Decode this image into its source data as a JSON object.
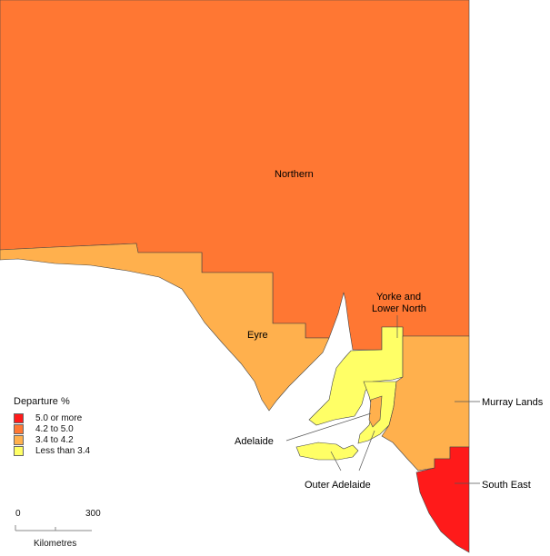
{
  "map": {
    "regions": [
      {
        "name": "Northern",
        "class": "4.2 to 5.0",
        "color": "#FF7733"
      },
      {
        "name": "Eyre",
        "class": "3.4 to 4.2",
        "color": "#FFB04D"
      },
      {
        "name": "Yorke and Lower North",
        "class": "Less than 3.4",
        "color": "#FFFF66"
      },
      {
        "name": "Murray Lands",
        "class": "3.4 to 4.2",
        "color": "#FFB04D"
      },
      {
        "name": "South East",
        "class": "5.0 or more",
        "color": "#FF1A1A"
      },
      {
        "name": "Adelaide",
        "class": "3.4 to 4.2",
        "color": "#FFB04D"
      },
      {
        "name": "Outer Adelaide",
        "class": "Less than 3.4",
        "color": "#FFFF66"
      }
    ],
    "labels": {
      "northern": "Northern",
      "eyre": "Eyre",
      "yorke_line1": "Yorke and",
      "yorke_line2": "Lower North",
      "murray": "Murray Lands",
      "south_east": "South East",
      "adelaide": "Adelaide",
      "outer_adelaide": "Outer Adelaide"
    }
  },
  "legend": {
    "title": "Departure %",
    "items": [
      {
        "label": "5.0 or more",
        "color": "#FF1A1A"
      },
      {
        "label": "4.2 to 5.0",
        "color": "#FF7733"
      },
      {
        "label": "3.4 to 4.2",
        "color": "#FFB04D"
      },
      {
        "label": "Less than 3.4",
        "color": "#FFFF66"
      }
    ]
  },
  "scale_bar": {
    "min": "0",
    "max": "300",
    "unit": "Kilometres"
  }
}
